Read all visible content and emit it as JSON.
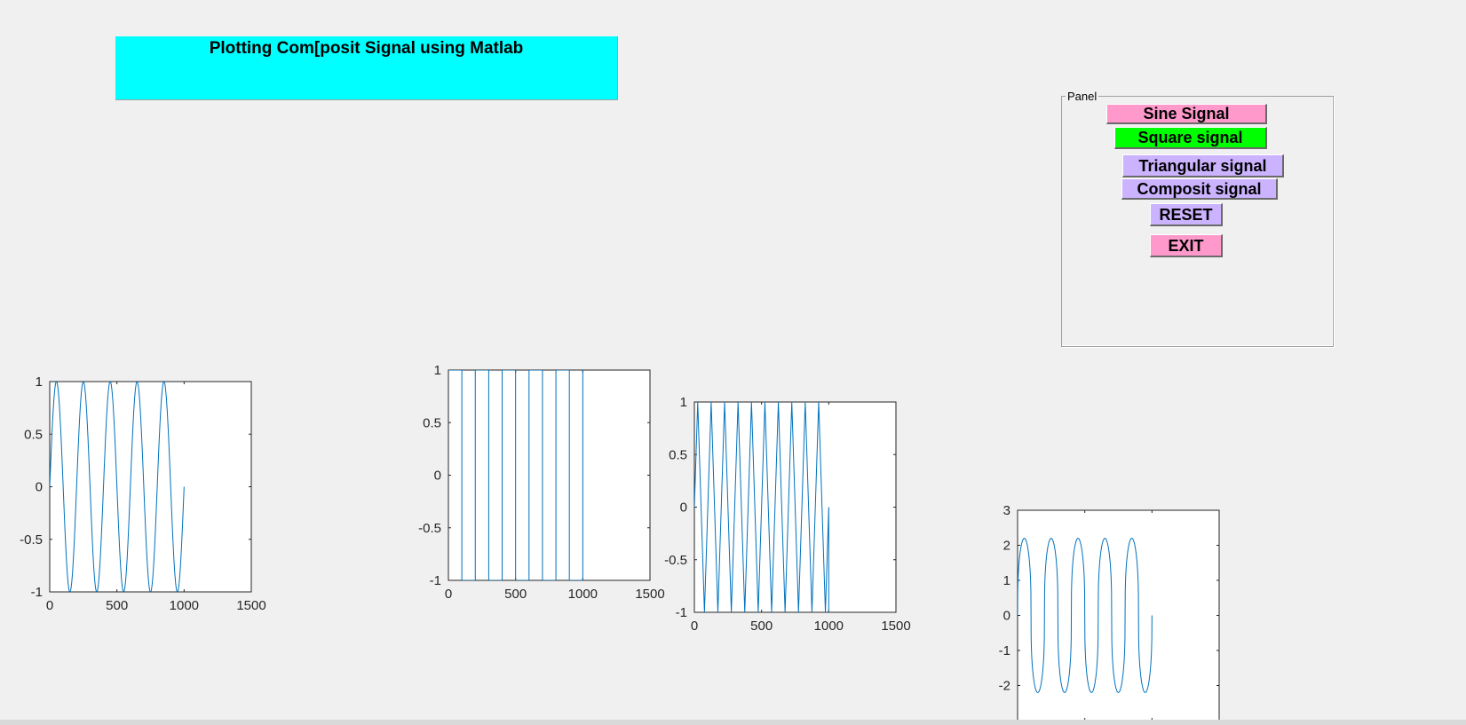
{
  "title": "Plotting Com[posit Signal using Matlab",
  "colors": {
    "background": "#f0f0f0",
    "title_bg": "#00ffff",
    "line": "#0072bd"
  },
  "panel": {
    "label": "Panel",
    "buttons": [
      {
        "id": "sine",
        "label": "Sine Signal",
        "bg": "#ff99cc"
      },
      {
        "id": "square",
        "label": "Square signal",
        "bg": "#00ff00"
      },
      {
        "id": "triangular",
        "label": "Triangular signal",
        "bg": "#ccb3ff"
      },
      {
        "id": "composit",
        "label": "Composit signal",
        "bg": "#ccb3ff"
      },
      {
        "id": "reset",
        "label": "RESET",
        "bg": "#ccb3ff"
      },
      {
        "id": "exit",
        "label": "EXIT",
        "bg": "#ff99cc"
      }
    ]
  },
  "chart_data": [
    {
      "type": "line",
      "name": "sine",
      "xlim": [
        0,
        1500
      ],
      "ylim": [
        -1,
        1
      ],
      "xticks": [
        "0",
        "500",
        "1000",
        "1500"
      ],
      "yticks": [
        "-1",
        "-0.5",
        "0",
        "0.5",
        "1"
      ],
      "signal": {
        "kind": "sine",
        "period": 200,
        "amplitude": 1,
        "x_end": 1000
      }
    },
    {
      "type": "line",
      "name": "square",
      "xlim": [
        0,
        1500
      ],
      "ylim": [
        -1,
        1
      ],
      "xticks": [
        "0",
        "500",
        "1000",
        "1500"
      ],
      "yticks": [
        "-1",
        "-0.5",
        "0",
        "0.5",
        "1"
      ],
      "signal": {
        "kind": "square",
        "period": 200,
        "amplitude": 1,
        "x_end": 1000
      }
    },
    {
      "type": "line",
      "name": "triangular",
      "xlim": [
        0,
        1500
      ],
      "ylim": [
        -1,
        1
      ],
      "xticks": [
        "0",
        "500",
        "1000",
        "1500"
      ],
      "yticks": [
        "-1",
        "-0.5",
        "0",
        "0.5",
        "1"
      ],
      "signal": {
        "kind": "triangle",
        "period": 100,
        "amplitude": 1,
        "x_end": 1000
      }
    },
    {
      "type": "line",
      "name": "composit",
      "xlim": [
        0,
        1500
      ],
      "ylim": [
        -3,
        3
      ],
      "xticks": [],
      "yticks": [
        "-2",
        "-1",
        "0",
        "1",
        "2",
        "3"
      ],
      "signal": {
        "kind": "composite",
        "period": 200,
        "amplitude": 2.2,
        "x_end": 1000
      }
    }
  ]
}
